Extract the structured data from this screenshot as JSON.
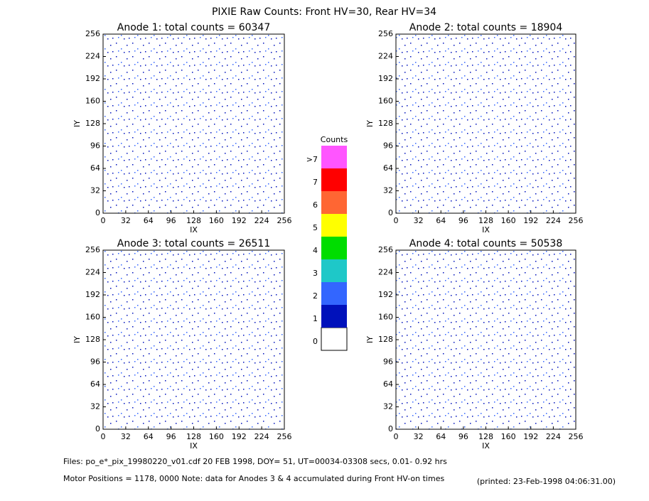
{
  "title": "PIXIE Raw Counts:  Front HV=30, Rear HV=34",
  "chart_data": [
    {
      "type": "heatmap",
      "title": "Anode 1: total counts = 60347",
      "x_label": "IX",
      "y_label": "IY",
      "xlim": [
        0,
        256
      ],
      "ylim": [
        0,
        256
      ],
      "xticks": [
        0,
        32,
        64,
        96,
        128,
        160,
        192,
        224,
        256
      ],
      "yticks": [
        0,
        32,
        64,
        96,
        128,
        160,
        192,
        224,
        256
      ]
    },
    {
      "type": "heatmap",
      "title": "Anode 2: total counts = 18904",
      "x_label": "IX",
      "y_label": "IY",
      "xlim": [
        0,
        256
      ],
      "ylim": [
        0,
        256
      ],
      "xticks": [
        0,
        32,
        64,
        96,
        128,
        160,
        192,
        224,
        256
      ],
      "yticks": [
        0,
        32,
        64,
        96,
        128,
        160,
        192,
        224,
        256
      ]
    },
    {
      "type": "heatmap",
      "title": "Anode 3: total counts = 26511",
      "x_label": "IX",
      "y_label": "IY",
      "xlim": [
        0,
        256
      ],
      "ylim": [
        0,
        256
      ],
      "xticks": [
        0,
        32,
        64,
        96,
        128,
        160,
        192,
        224,
        256
      ],
      "yticks": [
        0,
        32,
        64,
        96,
        128,
        160,
        192,
        224,
        256
      ]
    },
    {
      "type": "heatmap",
      "title": "Anode 4: total counts = 50538",
      "x_label": "IX",
      "y_label": "IY",
      "xlim": [
        0,
        256
      ],
      "ylim": [
        0,
        256
      ],
      "xticks": [
        0,
        32,
        64,
        96,
        128,
        160,
        192,
        224,
        256
      ],
      "yticks": [
        0,
        32,
        64,
        96,
        128,
        160,
        192,
        224,
        256
      ]
    }
  ],
  "colorbar": {
    "title": "Counts",
    "ticks": [
      0,
      1,
      2,
      3,
      4,
      5,
      6,
      7,
      {
        "value": 8,
        "label": ">7"
      }
    ],
    "colors": [
      "#ffffff",
      "#0011bb",
      "#3366ff",
      "#1ec8c8",
      "#00dd00",
      "#ffff00",
      "#ff6633",
      "#ff0000",
      "#ff55ff"
    ]
  },
  "footer": {
    "files": "Files: po_e*_pix_19980220_v01.cdf   20 FEB 1998, DOY= 51, UT=00034-03308 secs,  0.01- 0.92 hrs",
    "motor": "Motor Positions = 1178, 0000   Note: data for Anodes 3 & 4 accumulated during Front HV-on times",
    "printed": "(printed: 23-Feb-1998 04:06:31.00)"
  }
}
